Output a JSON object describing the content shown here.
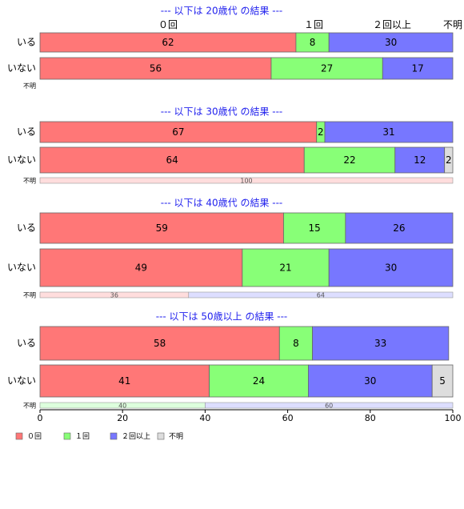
{
  "chart_data": {
    "type": "bar",
    "orientation": "horizontal",
    "stacked": true,
    "percent": true,
    "xlim": [
      0,
      100
    ],
    "xticks": [
      "0",
      "20",
      "40",
      "60",
      "80",
      "100"
    ],
    "category_header": [
      "０回",
      "１回",
      "２回以上",
      "不明"
    ],
    "series": [
      {
        "name": "０回",
        "color": "#ff7777"
      },
      {
        "name": "１回",
        "color": "#88ff77"
      },
      {
        "name": "２回以上",
        "color": "#7777ff"
      },
      {
        "name": "不明",
        "color": "#dddddd"
      }
    ],
    "groups": [
      {
        "title": "--- 以下は 20歳代 の結果 ---",
        "rows": [
          {
            "label": "いる",
            "values": [
              62,
              8,
              30,
              0
            ]
          },
          {
            "label": "いない",
            "values": [
              56,
              27,
              17,
              0
            ]
          },
          {
            "label": "不明",
            "values": [
              0,
              0,
              0,
              0
            ]
          }
        ]
      },
      {
        "title": "--- 以下は 30歳代 の結果 ---",
        "rows": [
          {
            "label": "いる",
            "values": [
              67,
              2,
              31,
              0
            ]
          },
          {
            "label": "いない",
            "values": [
              64,
              22,
              12,
              2
            ]
          },
          {
            "label": "不明",
            "values": [
              100,
              0,
              0,
              0
            ]
          }
        ]
      },
      {
        "title": "--- 以下は 40歳代 の結果 ---",
        "rows": [
          {
            "label": "いる",
            "values": [
              59,
              15,
              26,
              0
            ]
          },
          {
            "label": "いない",
            "values": [
              49,
              21,
              30,
              0
            ]
          },
          {
            "label": "不明",
            "values": [
              36,
              0,
              64,
              0
            ]
          }
        ]
      },
      {
        "title": "--- 以下は 50歳以上 の結果 ---",
        "rows": [
          {
            "label": "いる",
            "values": [
              58,
              8,
              33,
              0
            ]
          },
          {
            "label": "いない",
            "values": [
              41,
              24,
              30,
              5
            ]
          },
          {
            "label": "不明",
            "values": [
              0,
              40,
              60,
              0
            ]
          }
        ]
      }
    ],
    "legend": [
      "０回",
      "１回",
      "２回以上",
      "不明"
    ],
    "legend_position": "bottom-left",
    "grid": false
  }
}
